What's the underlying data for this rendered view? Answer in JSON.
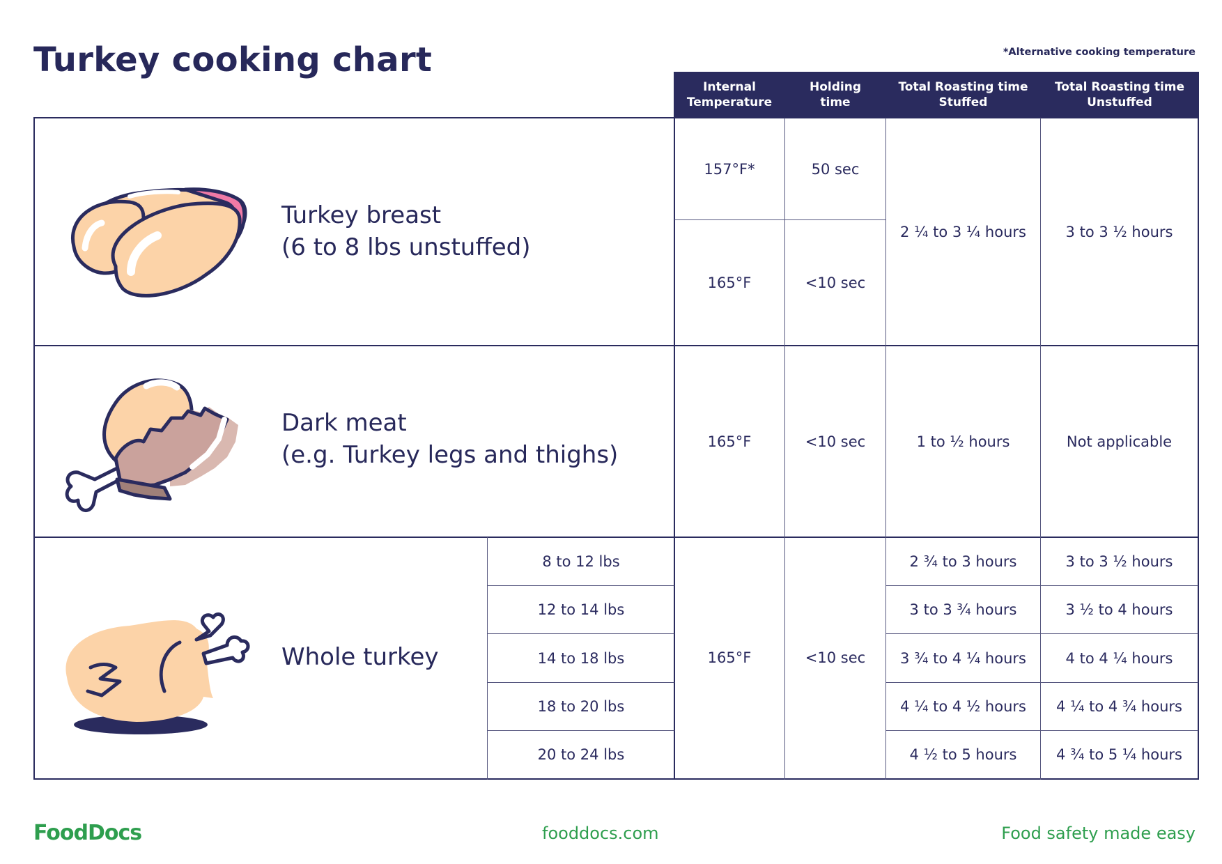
{
  "title": "Turkey cooking chart",
  "note": "*Alternative cooking temperature",
  "headers": {
    "internal_temperature": "Internal\nTemperature",
    "holding_time": "Holding\ntime",
    "roasting_stuffed": "Total Roasting time\nStuffed",
    "roasting_unstuffed": "Total Roasting time\nUnstuffed"
  },
  "rows": {
    "breast": {
      "label": "Turkey breast\n(6 to 8 lbs unstuffed)",
      "temp1": "157°F*",
      "hold1": "50 sec",
      "temp2": "165°F",
      "hold2": "<10 sec",
      "stuffed": "2 ¼ to 3 ¼ hours",
      "unstuffed": "3 to 3 ½ hours"
    },
    "dark": {
      "label": "Dark meat\n(e.g. Turkey legs and thighs)",
      "temp": "165°F",
      "hold": "<10 sec",
      "stuffed": "1 to ½ hours",
      "unstuffed": "Not applicable"
    },
    "whole": {
      "label": "Whole turkey",
      "temp": "165°F",
      "hold": "<10 sec",
      "weights": [
        "8 to 12 lbs",
        "12 to 14 lbs",
        "14 to 18 lbs",
        "18 to 20 lbs",
        "20 to 24 lbs"
      ],
      "stuffed": [
        "2 ¾ to 3 hours",
        "3 to 3 ¾ hours",
        "3 ¾ to 4 ¼ hours",
        "4 ¼ to 4 ½ hours",
        "4 ½ to 5 hours"
      ],
      "unstuffed": [
        "3 to 3 ½ hours",
        "3 ½ to 4 hours",
        "4 to 4 ¼ hours",
        "4 ¼ to 4 ¾ hours",
        "4 ¾ to 5 ¼ hours"
      ]
    }
  },
  "footer": {
    "logo": "FoodDocs",
    "website": "fooddocs.com",
    "tagline": "Food safety made easy"
  },
  "colors": {
    "navy": "#2a2b5e",
    "green": "#2e9e4e",
    "skin": "#fcd3a8",
    "pink": "#f07aa6"
  }
}
